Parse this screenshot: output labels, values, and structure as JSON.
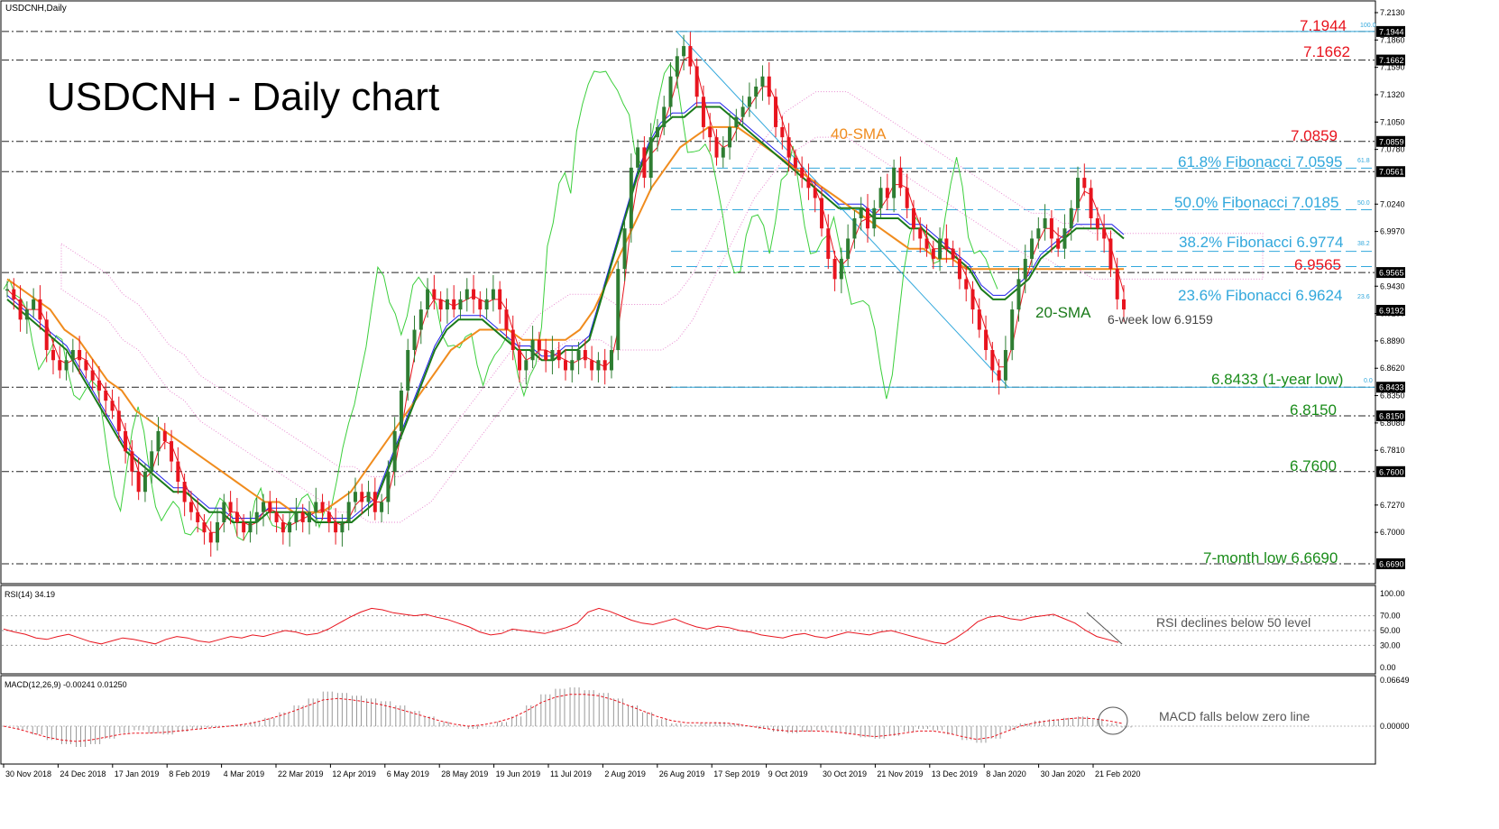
{
  "header": {
    "symbol": "USDCNH,Daily",
    "title": "USDCNH - Daily chart"
  },
  "chart_data": {
    "type": "candlestick",
    "main": {
      "y_axis_ticks": [
        "7.2130",
        "7.1860",
        "7.1590",
        "7.1320",
        "7.1050",
        "7.0780",
        "7.0240",
        "6.9970",
        "6.9430",
        "6.9160",
        "6.8890",
        "6.8620",
        "6.8350",
        "6.8080",
        "6.7810",
        "6.7270",
        "6.7000"
      ],
      "price_tags": [
        {
          "value": 7.1944,
          "label": "7.1944"
        },
        {
          "value": 7.1662,
          "label": "7.1662"
        },
        {
          "value": 7.0859,
          "label": "7.0859"
        },
        {
          "value": 7.0561,
          "label": "7.0561"
        },
        {
          "value": 6.9565,
          "label": "6.9565"
        },
        {
          "value": 6.9192,
          "label": "6.9192"
        },
        {
          "value": 6.8433,
          "label": "6.8433"
        },
        {
          "value": 6.815,
          "label": "6.8150"
        },
        {
          "value": 6.76,
          "label": "6.7600"
        },
        {
          "value": 6.669,
          "label": "6.6690"
        }
      ],
      "horizontal_levels": [
        7.1944,
        7.1662,
        7.0859,
        7.0561,
        6.9565,
        6.8433,
        6.815,
        6.76,
        6.669
      ],
      "fibonacci": [
        {
          "level": 7.0595,
          "label": "61.8% Fibonacci 7.0595",
          "tag": "61.8"
        },
        {
          "level": 7.0185,
          "label": "50.0% Fibonacci 7.0185",
          "tag": "50.0"
        },
        {
          "level": 6.9774,
          "label": "38.2% Fibonacci 6.9774",
          "tag": "38.2"
        },
        {
          "level": 6.9624,
          "label": "23.6% Fibonacci 6.9624",
          "tag": "23.6"
        }
      ],
      "fib_end_tags": {
        "top": "100.0",
        "bottom": "0.0"
      },
      "level_labels": [
        {
          "text": "7.1944",
          "color": "#e8141e"
        },
        {
          "text": "7.1662",
          "color": "#e8141e"
        },
        {
          "text": "7.0859",
          "color": "#e8141e"
        },
        {
          "text": "6.9565",
          "color": "#e8141e"
        },
        {
          "text": "6.8433 (1-year low)",
          "color": "#1a8c1a"
        },
        {
          "text": "6.8150",
          "color": "#1a8c1a"
        },
        {
          "text": "6.7600",
          "color": "#1a8c1a"
        },
        {
          "text": "7-month low 6.6690",
          "color": "#1a8c1a"
        }
      ],
      "annotations": {
        "sma40": "40-SMA",
        "sma20": "20-SMA",
        "six_week_low": "6-week low 6.9159"
      },
      "close_series": [
        6.94,
        6.93,
        6.91,
        6.92,
        6.93,
        6.91,
        6.88,
        6.87,
        6.86,
        6.87,
        6.88,
        6.87,
        6.86,
        6.85,
        6.84,
        6.83,
        6.82,
        6.8,
        6.78,
        6.76,
        6.74,
        6.76,
        6.78,
        6.8,
        6.79,
        6.77,
        6.75,
        6.73,
        6.72,
        6.71,
        6.7,
        6.69,
        6.71,
        6.73,
        6.72,
        6.71,
        6.7,
        6.71,
        6.72,
        6.73,
        6.72,
        6.71,
        6.7,
        6.71,
        6.72,
        6.71,
        6.72,
        6.73,
        6.72,
        6.71,
        6.7,
        6.71,
        6.73,
        6.74,
        6.73,
        6.74,
        6.72,
        6.73,
        6.76,
        6.8,
        6.84,
        6.88,
        6.9,
        6.92,
        6.94,
        6.93,
        6.92,
        6.93,
        6.92,
        6.93,
        6.94,
        6.93,
        6.92,
        6.93,
        6.94,
        6.92,
        6.9,
        6.88,
        6.86,
        6.87,
        6.89,
        6.88,
        6.87,
        6.88,
        6.87,
        6.86,
        6.87,
        6.88,
        6.87,
        6.86,
        6.87,
        6.86,
        6.88,
        6.96,
        7.0,
        7.06,
        7.08,
        7.05,
        7.09,
        7.1,
        7.12,
        7.15,
        7.17,
        7.18,
        7.16,
        7.13,
        7.1,
        7.09,
        7.07,
        7.08,
        7.1,
        7.11,
        7.12,
        7.13,
        7.14,
        7.15,
        7.13,
        7.1,
        7.09,
        7.07,
        7.06,
        7.05,
        7.04,
        7.03,
        7.0,
        6.97,
        6.95,
        6.97,
        6.99,
        7.01,
        7.02,
        7.0,
        7.02,
        7.04,
        7.03,
        7.06,
        7.04,
        7.02,
        7.0,
        6.99,
        6.98,
        6.97,
        6.99,
        6.98,
        6.97,
        6.95,
        6.94,
        6.92,
        6.9,
        6.88,
        6.86,
        6.85,
        6.88,
        6.92,
        6.95,
        6.97,
        6.99,
        7.0,
        7.01,
        6.99,
        6.98,
        7.0,
        7.02,
        7.05,
        7.04,
        7.01,
        7.0,
        6.99,
        6.96,
        6.93,
        6.92
      ],
      "sma20": [
        6.93,
        6.92,
        6.91,
        6.9,
        6.89,
        6.88,
        6.86,
        6.84,
        6.82,
        6.8,
        6.78,
        6.77,
        6.76,
        6.75,
        6.74,
        6.74,
        6.73,
        6.72,
        6.72,
        6.71,
        6.71,
        6.71,
        6.72,
        6.72,
        6.72,
        6.72,
        6.71,
        6.71,
        6.71,
        6.71,
        6.72,
        6.73,
        6.76,
        6.79,
        6.82,
        6.85,
        6.88,
        6.9,
        6.91,
        6.91,
        6.91,
        6.9,
        6.89,
        6.88,
        6.88,
        6.87,
        6.87,
        6.88,
        6.88,
        6.89,
        6.93,
        6.97,
        7.01,
        7.05,
        7.08,
        7.1,
        7.11,
        7.11,
        7.12,
        7.12,
        7.12,
        7.11,
        7.1,
        7.09,
        7.08,
        7.07,
        7.06,
        7.05,
        7.04,
        7.03,
        7.02,
        7.02,
        7.02,
        7.01,
        7.01,
        7.01,
        7.0,
        7.0,
        6.99,
        6.98,
        6.97,
        6.96,
        6.94,
        6.93,
        6.93,
        6.94,
        6.95,
        6.97,
        6.98,
        6.99,
        7.0,
        7.0,
        7.0,
        7.0,
        6.99
      ],
      "sma40": [
        6.95,
        6.94,
        6.93,
        6.92,
        6.9,
        6.89,
        6.87,
        6.85,
        6.84,
        6.82,
        6.81,
        6.8,
        6.79,
        6.78,
        6.77,
        6.76,
        6.75,
        6.74,
        6.73,
        6.73,
        6.72,
        6.72,
        6.72,
        6.73,
        6.74,
        6.76,
        6.78,
        6.8,
        6.82,
        6.84,
        6.86,
        6.88,
        6.89,
        6.9,
        6.9,
        6.9,
        6.89,
        6.89,
        6.89,
        6.89,
        6.9,
        6.92,
        6.95,
        6.98,
        7.01,
        7.04,
        7.06,
        7.08,
        7.09,
        7.1,
        7.1,
        7.1,
        7.09,
        7.08,
        7.07,
        7.06,
        7.05,
        7.04,
        7.03,
        7.02,
        7.01,
        7.0,
        6.99,
        6.98,
        6.98,
        6.97,
        6.97,
        6.96,
        6.96,
        6.96,
        6.96,
        6.96,
        6.96,
        6.96,
        6.96,
        6.96,
        6.96,
        6.96,
        6.96
      ]
    },
    "rsi": {
      "label": "RSI(14) 34.19",
      "ticks": [
        "100.00",
        "70.00",
        "50.00",
        "30.00",
        "0.00"
      ],
      "annotation": "RSI declines below 50 level",
      "values": [
        52,
        48,
        45,
        40,
        38,
        42,
        45,
        40,
        35,
        32,
        36,
        40,
        38,
        35,
        32,
        38,
        42,
        40,
        36,
        34,
        38,
        42,
        40,
        44,
        42,
        46,
        50,
        48,
        44,
        46,
        52,
        60,
        68,
        75,
        80,
        78,
        74,
        72,
        70,
        72,
        68,
        65,
        60,
        55,
        48,
        44,
        46,
        52,
        50,
        48,
        46,
        50,
        54,
        60,
        75,
        80,
        76,
        70,
        64,
        60,
        58,
        62,
        66,
        60,
        55,
        52,
        56,
        54,
        50,
        48,
        44,
        42,
        40,
        44,
        46,
        42,
        40,
        44,
        48,
        46,
        44,
        48,
        50,
        46,
        42,
        38,
        34,
        32,
        40,
        50,
        62,
        68,
        70,
        66,
        64,
        68,
        70,
        72,
        66,
        60,
        50,
        42,
        38,
        34
      ]
    },
    "macd": {
      "label": "MACD(12,26,9) -0.00241 0.01250",
      "ticks": [
        "0.06649",
        "0.00000"
      ],
      "annotation": "MACD falls below zero line",
      "histogram": [
        0.0,
        -0.005,
        -0.012,
        -0.02,
        -0.026,
        -0.03,
        -0.026,
        -0.018,
        -0.01,
        -0.006,
        -0.01,
        -0.012,
        -0.008,
        -0.004,
        -0.002,
        0.0,
        0.002,
        0.006,
        0.012,
        0.02,
        0.03,
        0.04,
        0.05,
        0.048,
        0.044,
        0.04,
        0.036,
        0.03,
        0.022,
        0.014,
        0.006,
        0.0,
        -0.004,
        0.0,
        0.006,
        0.014,
        0.03,
        0.046,
        0.054,
        0.056,
        0.052,
        0.048,
        0.04,
        0.03,
        0.02,
        0.01,
        0.004,
        0.002,
        0.004,
        0.006,
        0.004,
        0.0,
        -0.004,
        -0.008,
        -0.01,
        -0.008,
        -0.006,
        -0.008,
        -0.012,
        -0.016,
        -0.018,
        -0.014,
        -0.008,
        -0.004,
        -0.006,
        -0.012,
        -0.02,
        -0.024,
        -0.018,
        -0.006,
        0.004,
        0.008,
        0.01,
        0.012,
        0.014,
        0.01,
        0.004,
        -0.002
      ],
      "signal": [
        0.0,
        -0.004,
        -0.01,
        -0.016,
        -0.02,
        -0.022,
        -0.02,
        -0.016,
        -0.012,
        -0.01,
        -0.01,
        -0.009,
        -0.007,
        -0.005,
        -0.003,
        -0.001,
        0.001,
        0.004,
        0.009,
        0.015,
        0.022,
        0.03,
        0.038,
        0.04,
        0.038,
        0.035,
        0.031,
        0.026,
        0.02,
        0.014,
        0.008,
        0.003,
        0.0,
        0.002,
        0.006,
        0.012,
        0.022,
        0.034,
        0.042,
        0.046,
        0.046,
        0.044,
        0.038,
        0.03,
        0.022,
        0.014,
        0.008,
        0.005,
        0.005,
        0.005,
        0.004,
        0.001,
        -0.002,
        -0.005,
        -0.007,
        -0.007,
        -0.007,
        -0.008,
        -0.01,
        -0.013,
        -0.015,
        -0.013,
        -0.01,
        -0.007,
        -0.007,
        -0.01,
        -0.015,
        -0.019,
        -0.016,
        -0.008,
        0.0,
        0.005,
        0.008,
        0.01,
        0.012,
        0.011,
        0.008,
        0.004
      ]
    },
    "x_axis_labels": [
      "30 Nov 2018",
      "24 Dec 2018",
      "17 Jan 2019",
      "8 Feb 2019",
      "4 Mar 2019",
      "22 Mar 2019",
      "12 Apr 2019",
      "6 May 2019",
      "28 May 2019",
      "19 Jun 2019",
      "11 Jul 2019",
      "2 Aug 2019",
      "26 Aug 2019",
      "17 Sep 2019",
      "9 Oct 2019",
      "30 Oct 2019",
      "21 Nov 2019",
      "13 Dec 2019",
      "8 Jan 2020",
      "30 Jan 2020",
      "21 Feb 2020"
    ]
  },
  "colors": {
    "bull": "#2e7d32",
    "bear": "#e8141e",
    "sma20": "#1a7a1a",
    "sma40": "#f08c1e",
    "tenkan": "#e8141e",
    "kijun": "#1e1eea",
    "chikou": "#3ccf3c",
    "fib": "#32a8dc",
    "cloud": "#e88ad0",
    "cloud2": "#f5c9a0"
  }
}
